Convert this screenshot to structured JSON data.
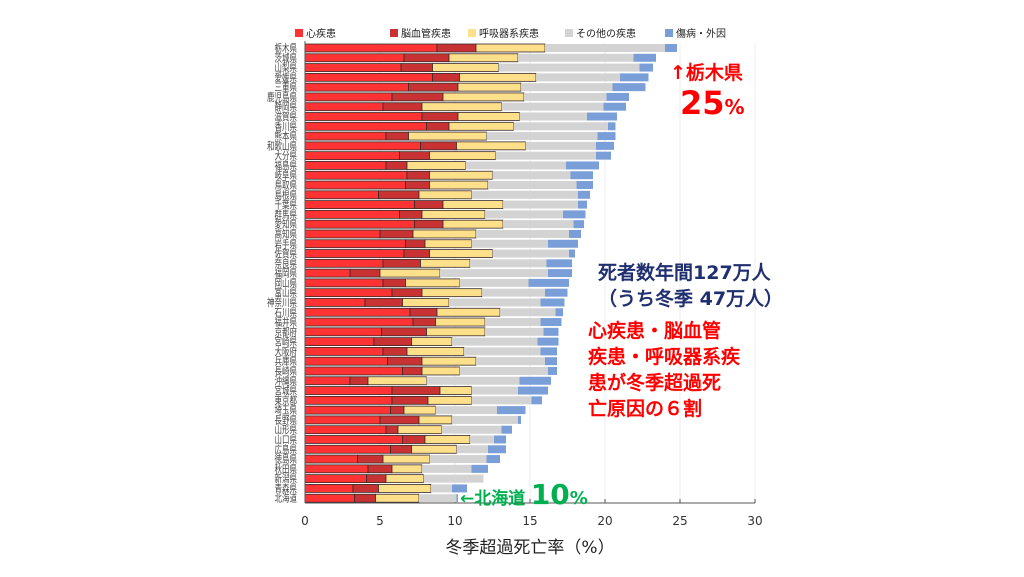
{
  "chart_data": {
    "type": "bar",
    "orientation": "horizontal",
    "stacked": true,
    "xlabel": "冬季超過死亡率（%）",
    "xlim": [
      0,
      30
    ],
    "xticks": [
      0,
      5,
      10,
      15,
      20,
      25,
      30
    ],
    "grid": true,
    "legend_position": "top",
    "categories": [
      "栃木県",
      "茨城県",
      "山梨県",
      "愛媛県",
      "三重県",
      "鹿児島県",
      "静岡県",
      "滋賀県",
      "香川県",
      "熊本県",
      "和歌山県",
      "大分県",
      "福島県",
      "岐阜県",
      "鳥取県",
      "島根県",
      "千葉県",
      "群馬県",
      "愛知県",
      "高知県",
      "岩手県",
      "佐賀県",
      "奈良県",
      "福岡県",
      "岡山県",
      "富山県",
      "神奈川県",
      "石川県",
      "福井県",
      "京都府",
      "宮崎県",
      "大阪府",
      "兵庫県",
      "長崎県",
      "沖縄県",
      "宮城県",
      "東京都",
      "埼玉県",
      "長野県",
      "山形県",
      "山口県",
      "広島県",
      "徳島県",
      "秋田県",
      "新潟県",
      "青森県",
      "北海道"
    ],
    "series": [
      {
        "name": "心疾患",
        "color": "#ff3333",
        "values": [
          8.8,
          6.6,
          6.4,
          8.5,
          6.9,
          5.8,
          5.2,
          7.8,
          8.1,
          5.4,
          7.7,
          6.3,
          5.4,
          6.8,
          6.7,
          4.9,
          7.3,
          6.3,
          7.3,
          5.0,
          6.7,
          6.6,
          5.2,
          3.0,
          5.2,
          5.8,
          4.0,
          7.0,
          7.2,
          5.1,
          4.6,
          5.2,
          5.5,
          6.5,
          3.0,
          5.8,
          5.8,
          5.7,
          5.0,
          5.4,
          6.5,
          5.7,
          3.5,
          4.2,
          4.1,
          3.2,
          3.3
        ]
      },
      {
        "name": "脳血管疾患",
        "color": "#c83232",
        "values": [
          2.6,
          3.0,
          2.1,
          1.8,
          3.3,
          3.4,
          2.6,
          2.4,
          1.5,
          1.5,
          2.4,
          2.0,
          1.4,
          1.5,
          1.6,
          2.7,
          1.9,
          1.5,
          1.9,
          2.2,
          1.3,
          1.7,
          2.5,
          2.0,
          1.5,
          2.0,
          2.5,
          1.8,
          1.5,
          3.0,
          2.5,
          1.6,
          2.3,
          1.3,
          1.2,
          3.2,
          2.4,
          0.9,
          2.6,
          0.8,
          1.5,
          1.4,
          1.7,
          1.6,
          1.3,
          1.7,
          1.4
        ]
      },
      {
        "name": "呼吸器系疾患",
        "color": "#ffe08a",
        "values": [
          4.6,
          4.6,
          4.4,
          5.1,
          4.2,
          5.4,
          5.3,
          4.1,
          4.3,
          5.2,
          4.6,
          4.4,
          3.9,
          4.2,
          3.9,
          3.5,
          4.0,
          4.2,
          4.0,
          4.2,
          3.1,
          4.2,
          3.3,
          4.0,
          3.6,
          4.0,
          3.1,
          4.2,
          3.3,
          3.9,
          2.7,
          3.8,
          3.6,
          2.5,
          3.9,
          2.1,
          2.9,
          2.1,
          2.2,
          2.9,
          3.0,
          3.0,
          3.1,
          2.0,
          2.5,
          3.5,
          2.9
        ]
      },
      {
        "name": "その他の疾患",
        "color": "#d3d3d3",
        "values": [
          8.0,
          7.7,
          9.4,
          5.6,
          6.1,
          5.5,
          6.8,
          4.5,
          6.3,
          7.4,
          4.7,
          6.7,
          6.7,
          5.2,
          5.9,
          7.1,
          5.0,
          5.2,
          4.7,
          6.2,
          5.1,
          5.1,
          5.1,
          7.2,
          4.6,
          4.2,
          6.1,
          3.7,
          3.7,
          3.9,
          5.7,
          5.1,
          4.6,
          5.9,
          6.2,
          3.1,
          4.0,
          4.1,
          4.4,
          4.0,
          1.6,
          2.1,
          3.8,
          3.3,
          4.0,
          1.4,
          2.5
        ]
      },
      {
        "name": "傷病・外因",
        "color": "#7a9fd8",
        "values": [
          0.8,
          1.5,
          0.9,
          1.9,
          2.2,
          1.5,
          1.5,
          2.0,
          0.5,
          1.2,
          1.2,
          1.0,
          2.2,
          1.5,
          1.1,
          0.8,
          0.6,
          1.5,
          0.7,
          0.8,
          2.0,
          0.4,
          1.7,
          1.6,
          2.7,
          1.5,
          1.6,
          0.5,
          1.4,
          1.0,
          1.4,
          1.1,
          0.8,
          0.6,
          2.1,
          2.0,
          0.7,
          1.9,
          0.2,
          0.7,
          0.8,
          1.2,
          0.9,
          1.1,
          0.0,
          1.0,
          0.1
        ]
      }
    ]
  },
  "annotations": {
    "top_arrow": "↑栃木県",
    "top_value": "25",
    "top_unit": "%",
    "deaths_line1": "死者数年間127万人",
    "deaths_line2": "（うち冬季  47万人）",
    "cause_line1": "心疾患・脳血管",
    "cause_line2": "疾患・呼吸器系疾",
    "cause_line3": "患が冬季超過死",
    "cause_line4": "亡原因の６割",
    "bottom_arrow": "←北海道",
    "bottom_value": "10",
    "bottom_unit": "%",
    "red_color": "#ff0000",
    "navy_color": "#1f2f6f",
    "green_color": "#00b050"
  }
}
